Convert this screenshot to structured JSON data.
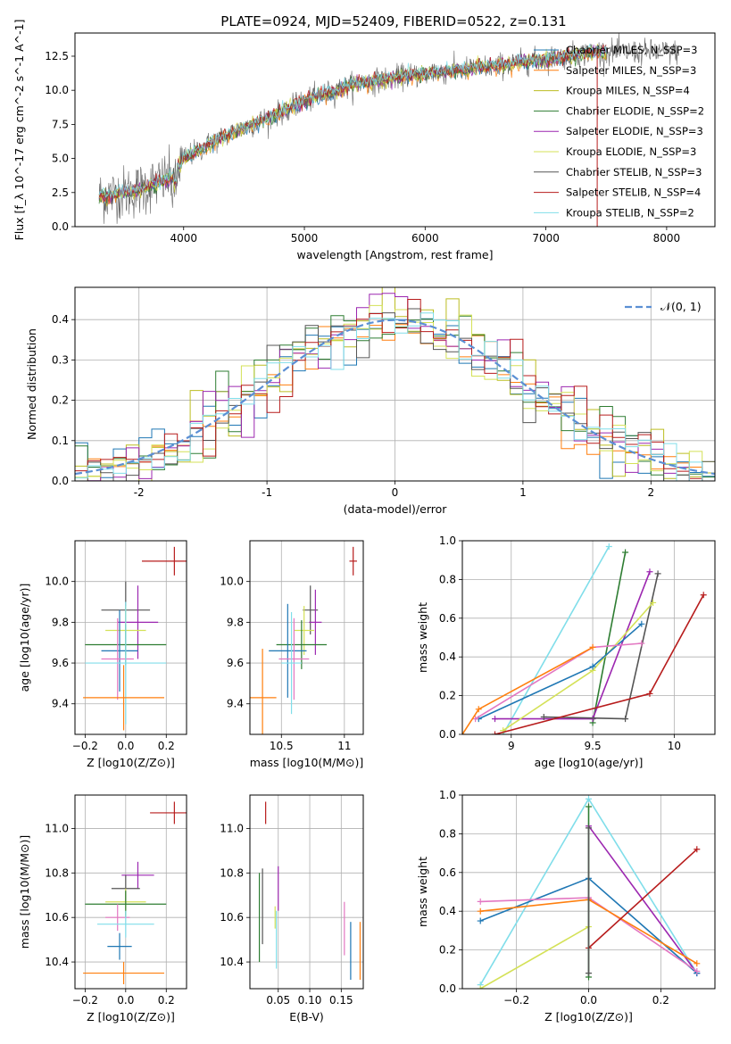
{
  "figure_title": "PLATE=0924, MJD=52409, FIBERID=0522, z=0.131",
  "legend_items": [
    {
      "label": "Chabrier MILES, N_SSP=3",
      "color": "#1f77b4"
    },
    {
      "label": "Salpeter MILES, N_SSP=3",
      "color": "#ff7f0e"
    },
    {
      "label": "Kroupa MILES, N_SSP=4",
      "color": "#bcbd22"
    },
    {
      "label": "Chabrier ELODIE, N_SSP=2",
      "color": "#2e7d32"
    },
    {
      "label": "Salpeter ELODIE, N_SSP=3",
      "color": "#9c27b0"
    },
    {
      "label": "Kroupa ELODIE, N_SSP=3",
      "color": "#d4e157"
    },
    {
      "label": "Chabrier STELIB, N_SSP=3",
      "color": "#555555"
    },
    {
      "label": "Salpeter STELIB, N_SSP=4",
      "color": "#b71c1c"
    },
    {
      "label": "Kroupa STELIB, N_SSP=2",
      "color": "#80deea"
    }
  ],
  "chart_data": [
    {
      "id": "spectrum",
      "type": "line",
      "title": "PLATE=0924, MJD=52409, FIBERID=0522, z=0.131",
      "xlabel": "wavelength [Angstrom, rest frame]",
      "ylabel": "Flux [f_λ 10^-17 erg cm^-2 s^-1 A^-1]",
      "xlim": [
        3100,
        8400
      ],
      "ylim": [
        0,
        14.2
      ],
      "xticks": [
        4000,
        5000,
        6000,
        7000,
        8000
      ],
      "yticks": [
        0.0,
        2.5,
        5.0,
        7.5,
        10.0,
        12.5
      ],
      "continuum": {
        "x": [
          3300,
          3600,
          3900,
          4000,
          4300,
          4700,
          5000,
          5400,
          5800,
          6200,
          6600,
          7000,
          7400
        ],
        "y": [
          2.2,
          2.6,
          3.6,
          5.0,
          6.5,
          8.0,
          9.2,
          10.4,
          11.0,
          11.4,
          11.8,
          12.3,
          12.8
        ]
      }
    },
    {
      "id": "residuals",
      "type": "line",
      "xlabel": "(data-model)/error",
      "ylabel": "Normed distribution",
      "xlim": [
        -2.5,
        2.5
      ],
      "ylim": [
        0,
        0.48
      ],
      "xticks": [
        -2,
        -1,
        0,
        1,
        2
      ],
      "yticks": [
        0.0,
        0.1,
        0.2,
        0.3,
        0.4
      ],
      "legend": "𝒩(0, 1)",
      "legend_position": "upper right",
      "grid": true
    },
    {
      "id": "age_vs_Z",
      "type": "scatter",
      "xlabel": "Z [log10(Z/Z⊙)]",
      "ylabel": "age [log10(age/yr)]",
      "xlim": [
        -0.25,
        0.3
      ],
      "ylim": [
        9.25,
        10.2
      ],
      "xticks": [
        -0.2,
        0.0,
        0.2
      ],
      "xtick_labels": [
        "−0.2",
        "0.0",
        "0.2"
      ],
      "yticks": [
        9.4,
        9.6,
        9.8,
        10.0
      ],
      "grid": true,
      "points": [
        {
          "x": 0.24,
          "y": 10.1,
          "xerr": 0.16,
          "yerr": 0.07,
          "color": "#b71c1c"
        },
        {
          "x": 0.0,
          "y": 9.86,
          "xerr": 0.12,
          "yerr": 0.14,
          "color": "#555555"
        },
        {
          "x": 0.06,
          "y": 9.8,
          "xerr": 0.1,
          "yerr": 0.18,
          "color": "#9c27b0"
        },
        {
          "x": 0.0,
          "y": 9.76,
          "xerr": 0.1,
          "yerr": 0.12,
          "color": "#d4e157"
        },
        {
          "x": 0.0,
          "y": 9.69,
          "xerr": 0.2,
          "yerr": 0.1,
          "color": "#2e7d32"
        },
        {
          "x": -0.03,
          "y": 9.66,
          "xerr": 0.09,
          "yerr": 0.2,
          "color": "#1f77b4"
        },
        {
          "x": -0.04,
          "y": 9.62,
          "xerr": 0.08,
          "yerr": 0.2,
          "color": "#e377c2"
        },
        {
          "x": 0.0,
          "y": 9.6,
          "xerr": 0.2,
          "yerr": 0.3,
          "color": "#80deea"
        },
        {
          "x": -0.01,
          "y": 9.43,
          "xerr": 0.2,
          "yerr": 0.16,
          "color": "#ff7f0e"
        }
      ]
    },
    {
      "id": "age_vs_mass",
      "type": "scatter",
      "xlabel": "mass [log10(M/M⊙)]",
      "xlim": [
        10.25,
        11.15
      ],
      "ylim": [
        9.25,
        10.2
      ],
      "xticks": [
        10.5,
        11.0
      ],
      "yticks": [
        9.4,
        9.6,
        9.8,
        10.0
      ],
      "grid": true,
      "points": [
        {
          "x": 11.07,
          "y": 10.1,
          "xerr": 0.03,
          "yerr": 0.07,
          "color": "#b71c1c"
        },
        {
          "x": 10.73,
          "y": 9.86,
          "xerr": 0.06,
          "yerr": 0.12,
          "color": "#555555"
        },
        {
          "x": 10.77,
          "y": 9.8,
          "xerr": 0.05,
          "yerr": 0.16,
          "color": "#9c27b0"
        },
        {
          "x": 10.68,
          "y": 9.76,
          "xerr": 0.08,
          "yerr": 0.12,
          "color": "#d4e157"
        },
        {
          "x": 10.66,
          "y": 9.69,
          "xerr": 0.2,
          "yerr": 0.12,
          "color": "#2e7d32"
        },
        {
          "x": 10.55,
          "y": 9.66,
          "xerr": 0.15,
          "yerr": 0.23,
          "color": "#1f77b4"
        },
        {
          "x": 10.6,
          "y": 9.62,
          "xerr": 0.12,
          "yerr": 0.2,
          "color": "#e377c2"
        },
        {
          "x": 10.58,
          "y": 9.6,
          "xerr": 0.08,
          "yerr": 0.25,
          "color": "#80deea"
        },
        {
          "x": 10.35,
          "y": 9.43,
          "xerr": 0.11,
          "yerr": 0.24,
          "color": "#ff7f0e"
        }
      ]
    },
    {
      "id": "massweight_vs_age",
      "type": "line",
      "xlabel": "age [log10(age/yr)]",
      "ylabel": "mass weight",
      "xlim": [
        8.7,
        10.25
      ],
      "ylim": [
        0,
        1.0
      ],
      "xticks": [
        9.0,
        9.5,
        10.0
      ],
      "yticks": [
        0.0,
        0.2,
        0.4,
        0.6,
        0.8,
        1.0
      ],
      "grid": true,
      "series": [
        {
          "color": "#80deea",
          "x": [
            8.95,
            9.6
          ],
          "y": [
            0.0,
            0.97
          ]
        },
        {
          "color": "#2e7d32",
          "x": [
            9.5,
            9.7
          ],
          "y": [
            0.06,
            0.94
          ]
        },
        {
          "color": "#9c27b0",
          "x": [
            8.9,
            9.5,
            9.85
          ],
          "y": [
            0.08,
            0.08,
            0.84
          ]
        },
        {
          "color": "#555555",
          "x": [
            9.2,
            9.7,
            9.9
          ],
          "y": [
            0.09,
            0.08,
            0.83
          ]
        },
        {
          "color": "#d4e157",
          "x": [
            8.95,
            9.5,
            9.87
          ],
          "y": [
            0.02,
            0.33,
            0.68
          ]
        },
        {
          "color": "#b71c1c",
          "x": [
            8.9,
            9.85,
            10.18
          ],
          "y": [
            0.0,
            0.21,
            0.72
          ]
        },
        {
          "color": "#1f77b4",
          "x": [
            8.8,
            9.5,
            9.8
          ],
          "y": [
            0.08,
            0.35,
            0.57
          ]
        },
        {
          "color": "#e377c2",
          "x": [
            8.78,
            9.5,
            9.8
          ],
          "y": [
            0.08,
            0.45,
            0.47
          ]
        },
        {
          "color": "#ff7f0e",
          "x": [
            8.7,
            8.8,
            9.5
          ],
          "y": [
            0.0,
            0.13,
            0.45
          ]
        }
      ]
    },
    {
      "id": "mass_vs_Z",
      "type": "scatter",
      "xlabel": "Z [log10(Z/Z⊙)]",
      "ylabel": "mass [log10(M/M⊙)]",
      "xlim": [
        -0.25,
        0.3
      ],
      "ylim": [
        10.28,
        11.15
      ],
      "xticks": [
        -0.2,
        0.0,
        0.2
      ],
      "xtick_labels": [
        "−0.2",
        "0.0",
        "0.2"
      ],
      "yticks": [
        10.4,
        10.6,
        10.8,
        11.0
      ],
      "grid": true,
      "points": [
        {
          "x": 0.24,
          "y": 11.07,
          "xerr": 0.12,
          "yerr": 0.05,
          "color": "#b71c1c"
        },
        {
          "x": 0.06,
          "y": 10.79,
          "xerr": 0.08,
          "yerr": 0.06,
          "color": "#9c27b0"
        },
        {
          "x": 0.0,
          "y": 10.73,
          "xerr": 0.07,
          "yerr": 0.06,
          "color": "#555555"
        },
        {
          "x": 0.0,
          "y": 10.67,
          "xerr": 0.1,
          "yerr": 0.06,
          "color": "#d4e157"
        },
        {
          "x": 0.0,
          "y": 10.66,
          "xerr": 0.2,
          "yerr": 0.06,
          "color": "#2e7d32"
        },
        {
          "x": -0.04,
          "y": 10.6,
          "xerr": 0.06,
          "yerr": 0.06,
          "color": "#e377c2"
        },
        {
          "x": 0.0,
          "y": 10.57,
          "xerr": 0.14,
          "yerr": 0.06,
          "color": "#80deea"
        },
        {
          "x": -0.03,
          "y": 10.47,
          "xerr": 0.06,
          "yerr": 0.06,
          "color": "#1f77b4"
        },
        {
          "x": -0.01,
          "y": 10.35,
          "xerr": 0.2,
          "yerr": 0.05,
          "color": "#ff7f0e"
        }
      ]
    },
    {
      "id": "mass_vs_EBV",
      "type": "scatter",
      "xlabel": "E(B-V)",
      "xlim": [
        0.005,
        0.185
      ],
      "ylim": [
        10.28,
        11.15
      ],
      "xticks": [
        0.05,
        0.1,
        0.15
      ],
      "xtick_labels": [
        "0.05",
        "0.10",
        "0.15"
      ],
      "yticks": [
        10.4,
        10.6,
        10.8,
        11.0
      ],
      "grid": true,
      "points": [
        {
          "x": 0.03,
          "y": 11.07,
          "yerr": 0.05,
          "color": "#b71c1c"
        },
        {
          "x": 0.05,
          "y": 10.73,
          "yerr": 0.1,
          "color": "#9c27b0"
        },
        {
          "x": 0.02,
          "y": 10.6,
          "yerr": 0.2,
          "color": "#2e7d32"
        },
        {
          "x": 0.025,
          "y": 10.65,
          "yerr": 0.17,
          "color": "#555555"
        },
        {
          "x": 0.045,
          "y": 10.6,
          "yerr": 0.05,
          "color": "#d4e157"
        },
        {
          "x": 0.047,
          "y": 10.5,
          "yerr": 0.13,
          "color": "#80deea"
        },
        {
          "x": 0.155,
          "y": 10.55,
          "yerr": 0.12,
          "color": "#e377c2"
        },
        {
          "x": 0.165,
          "y": 10.45,
          "yerr": 0.13,
          "color": "#1f77b4"
        },
        {
          "x": 0.18,
          "y": 10.45,
          "yerr": 0.13,
          "color": "#ff7f0e"
        }
      ]
    },
    {
      "id": "massweight_vs_Z",
      "type": "line",
      "xlabel": "Z [log10(Z/Z⊙)]",
      "ylabel": "mass weight",
      "xlim": [
        -0.35,
        0.35
      ],
      "ylim": [
        0,
        1.0
      ],
      "xticks": [
        -0.2,
        0.0,
        0.2
      ],
      "xtick_labels": [
        "−0.2",
        "0.0",
        "0.2"
      ],
      "yticks": [
        0.0,
        0.2,
        0.4,
        0.6,
        0.8,
        1.0
      ],
      "grid": true,
      "series": [
        {
          "color": "#80deea",
          "x": [
            -0.3,
            0.0,
            0.3
          ],
          "y": [
            0.02,
            0.98,
            0.08
          ]
        },
        {
          "color": "#9c27b0",
          "x": [
            0.0,
            0.3
          ],
          "y": [
            0.84,
            0.08
          ]
        },
        {
          "color": "#1f77b4",
          "x": [
            -0.3,
            0.0,
            0.3
          ],
          "y": [
            0.35,
            0.57,
            0.08
          ]
        },
        {
          "color": "#e377c2",
          "x": [
            -0.3,
            0.0,
            0.3
          ],
          "y": [
            0.45,
            0.47,
            0.09
          ]
        },
        {
          "color": "#ff7f0e",
          "x": [
            -0.3,
            0.0,
            0.3
          ],
          "y": [
            0.4,
            0.46,
            0.13
          ]
        },
        {
          "color": "#d4e157",
          "x": [
            -0.3,
            0.0
          ],
          "y": [
            0.0,
            0.32
          ]
        },
        {
          "color": "#b71c1c",
          "x": [
            0.0,
            0.3
          ],
          "y": [
            0.21,
            0.72
          ]
        },
        {
          "color": "#2e7d32",
          "x": [
            0.0,
            0.0
          ],
          "y": [
            0.06,
            0.94
          ]
        },
        {
          "color": "#555555",
          "x": [
            0.0,
            0.0
          ],
          "y": [
            0.08,
            0.83
          ]
        }
      ]
    }
  ]
}
